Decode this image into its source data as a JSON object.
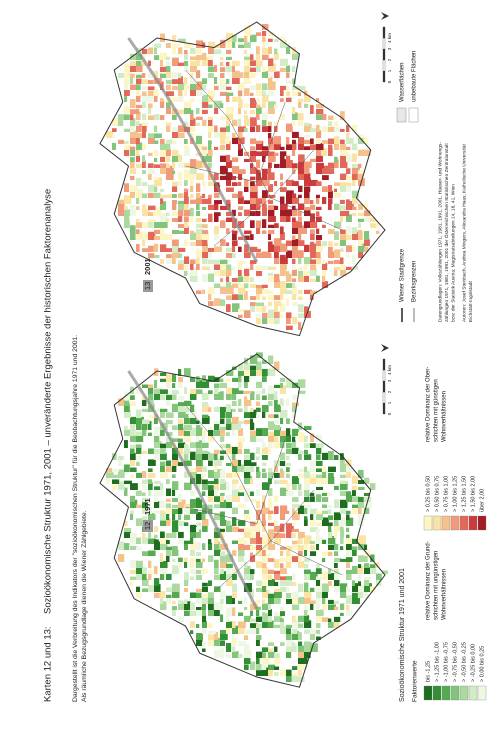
{
  "header": {
    "prefix": "Karten 12 und 13:",
    "title": "Sozioökonomische Struktur 1971, 2001 – unveränderte Ergebnisse der historischen Faktorenanalyse",
    "description": [
      "Dargestellt ist die Verbreitung des Indikators der \"sozioökonomischen Struktur\" für die Beobachtungsjahre 1971 und 2001.",
      "Als räumliche Bezugsgrundlage dienen die Wiener Zählgebiete."
    ]
  },
  "maps": [
    {
      "number": "12",
      "year": "1971"
    },
    {
      "number": "13",
      "year": "2001"
    }
  ],
  "scale": {
    "ticks": [
      "0",
      "1",
      "2",
      "3",
      "4 km"
    ]
  },
  "legend": {
    "title": "Sozioökonomische Struktur 1971 und 2001",
    "subtitle": "Faktorenwerte",
    "classes": [
      {
        "label": "bis -1,25",
        "color": "#1f6e1f"
      },
      {
        "label": "> -1,25 bis -1,00",
        "color": "#338f33"
      },
      {
        "label": "> -1,00 bis -0,75",
        "color": "#55aa4f"
      },
      {
        "label": "> -0,75 bis -0,50",
        "color": "#82c47a"
      },
      {
        "label": "> -0,50 bis -0,25",
        "color": "#abd9a0"
      },
      {
        "label": "> -0,25 bis 0,00",
        "color": "#d2ecc6"
      },
      {
        "label": "> 0,00 bis 0,25",
        "color": "#eef7e4"
      },
      {
        "label": "> 0,25 bis 0,50",
        "color": "#fdf5c4"
      },
      {
        "label": "> 0,50 bis 0,75",
        "color": "#fbe3a4"
      },
      {
        "label": "> 0,75 bis 1,00",
        "color": "#f6c28c"
      },
      {
        "label": "> 1,00 bis 1,25",
        "color": "#f09c7a"
      },
      {
        "label": "> 1,25 bis 1,50",
        "color": "#e2695a"
      },
      {
        "label": "> 1,50 bis 2,00",
        "color": "#cc3b3b"
      },
      {
        "label": "über 2,00",
        "color": "#a11c25"
      }
    ],
    "low_note": [
      "relative Dominanz der Grund-",
      "schichten mit ungünstigen",
      "Wohnverhältnissen"
    ],
    "high_note": [
      "relative Dominanz der Ober-",
      "schichten mit günstigen",
      "Wohnverhältnissen"
    ]
  },
  "boundaries": [
    "Wiener Stadtgrenze",
    "Bezirksgrenzen"
  ],
  "surfaces": [
    "Wasserflächen",
    "unbebaute Flächen"
  ],
  "sources": [
    "Datengrundlagen: Volkszählungen 1971, 1981, 1991, 2001, Häuser- und Wohnungs-",
    "zählungen 1971, 1981, 1991, 2001 der Österreichischen Statistischen Zentralanstalt",
    "bzw. der Statistik Austria; Magistratsabteilungen 14, 18, 41, Wien"
  ],
  "authors": [
    "Autoren: Josef Steinbach, Andrea Mingers, Alexandra Haas; Katholische Universität",
    "Eichstätt-Ingolstadt"
  ]
}
